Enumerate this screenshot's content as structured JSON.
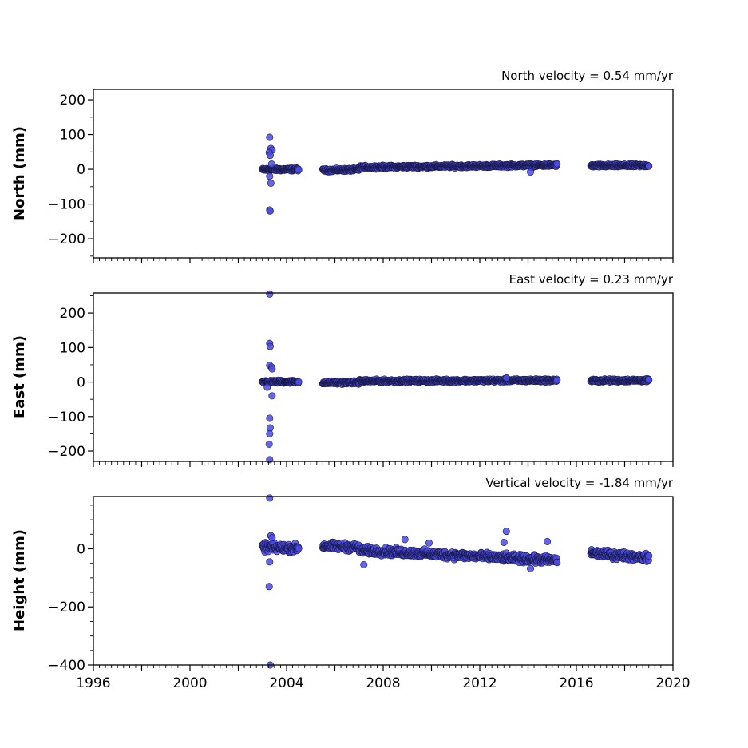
{
  "chart_data": [
    {
      "type": "scatter",
      "title": "North velocity = 0.54 mm/yr",
      "xlabel": "",
      "ylabel": "North (mm)",
      "xlim": [
        1996,
        2020
      ],
      "ylim": [
        -255,
        230
      ],
      "yticks": [
        -200,
        -100,
        0,
        100,
        200
      ],
      "ytick_labels": [
        "−200",
        "−100",
        "0",
        "100",
        "200"
      ],
      "velocity_mm_per_yr": 0.54,
      "marker_color": "#4a4ae6",
      "segments": [
        {
          "start": 2003.0,
          "end": 2004.5,
          "y0": -1,
          "y1": 0,
          "noise": 3
        },
        {
          "start": 2005.5,
          "end": 2007.0,
          "y0": -3,
          "y1": -1,
          "noise": 3
        },
        {
          "start": 2007.0,
          "end": 2015.2,
          "y0": 6,
          "y1": 12,
          "noise": 3
        },
        {
          "start": 2016.6,
          "end": 2019.0,
          "y0": 10,
          "y1": 11,
          "noise": 3
        }
      ],
      "outliers": [
        {
          "x": 2003.3,
          "y": 92
        },
        {
          "x": 2003.35,
          "y": 60
        },
        {
          "x": 2003.4,
          "y": 55
        },
        {
          "x": 2003.28,
          "y": 48
        },
        {
          "x": 2003.32,
          "y": 40
        },
        {
          "x": 2003.38,
          "y": 15
        },
        {
          "x": 2003.3,
          "y": -20
        },
        {
          "x": 2003.35,
          "y": -40
        },
        {
          "x": 2003.3,
          "y": -117
        },
        {
          "x": 2003.32,
          "y": -120
        },
        {
          "x": 2014.1,
          "y": -8
        }
      ]
    },
    {
      "type": "scatter",
      "title": "East velocity = 0.23 mm/yr",
      "xlabel": "",
      "ylabel": "East (mm)",
      "xlim": [
        1996,
        2020
      ],
      "ylim": [
        -230,
        258
      ],
      "yticks": [
        -200,
        -100,
        0,
        100,
        200
      ],
      "ytick_labels": [
        "−200",
        "−100",
        "0",
        "100",
        "200"
      ],
      "velocity_mm_per_yr": 0.23,
      "marker_color": "#4a4ae6",
      "segments": [
        {
          "start": 2003.0,
          "end": 2004.5,
          "y0": 1,
          "y1": 1,
          "noise": 3
        },
        {
          "start": 2005.5,
          "end": 2007.0,
          "y0": -2,
          "y1": -1,
          "noise": 3
        },
        {
          "start": 2007.0,
          "end": 2015.2,
          "y0": 3,
          "y1": 5,
          "noise": 3
        },
        {
          "start": 2016.6,
          "end": 2019.0,
          "y0": 4,
          "y1": 5,
          "noise": 3
        }
      ],
      "outliers": [
        {
          "x": 2003.3,
          "y": 255
        },
        {
          "x": 2003.3,
          "y": 112
        },
        {
          "x": 2003.32,
          "y": 103
        },
        {
          "x": 2003.3,
          "y": 48
        },
        {
          "x": 2003.38,
          "y": 43
        },
        {
          "x": 2003.4,
          "y": 38
        },
        {
          "x": 2003.2,
          "y": -15
        },
        {
          "x": 2003.4,
          "y": -40
        },
        {
          "x": 2003.3,
          "y": -105
        },
        {
          "x": 2003.32,
          "y": -133
        },
        {
          "x": 2003.3,
          "y": -150
        },
        {
          "x": 2003.28,
          "y": -180
        },
        {
          "x": 2003.3,
          "y": -225
        },
        {
          "x": 2013.1,
          "y": 12
        }
      ]
    },
    {
      "type": "scatter",
      "title": "Vertical velocity = -1.84 mm/yr",
      "xlabel": "",
      "ylabel": "Height (mm)",
      "xlim": [
        1996,
        2020
      ],
      "xticks": [
        1996,
        2000,
        2004,
        2008,
        2012,
        2016,
        2020
      ],
      "xtick_labels": [
        "1996",
        "2000",
        "2004",
        "2008",
        "2012",
        "2016",
        "2020"
      ],
      "ylim": [
        -400,
        180
      ],
      "yticks": [
        -400,
        -200,
        0
      ],
      "ytick_labels": [
        "−400",
        "−200",
        "0"
      ],
      "velocity_mm_per_yr": -1.84,
      "marker_color": "#4a4ae6",
      "segments": [
        {
          "start": 2003.0,
          "end": 2004.5,
          "y0": 5,
          "y1": 2,
          "noise": 10
        },
        {
          "start": 2005.5,
          "end": 2007.0,
          "y0": 10,
          "y1": 5,
          "noise": 9
        },
        {
          "start": 2007.0,
          "end": 2015.2,
          "y0": -5,
          "y1": -40,
          "noise": 9
        },
        {
          "start": 2016.6,
          "end": 2019.0,
          "y0": -15,
          "y1": -30,
          "noise": 9
        }
      ],
      "outliers": [
        {
          "x": 2003.3,
          "y": 175
        },
        {
          "x": 2003.35,
          "y": 45
        },
        {
          "x": 2003.4,
          "y": 38
        },
        {
          "x": 2003.3,
          "y": -45
        },
        {
          "x": 2003.28,
          "y": -130
        },
        {
          "x": 2003.32,
          "y": -400
        },
        {
          "x": 2007.2,
          "y": -55
        },
        {
          "x": 2008.9,
          "y": 32
        },
        {
          "x": 2009.9,
          "y": 20
        },
        {
          "x": 2013.0,
          "y": 22
        },
        {
          "x": 2013.1,
          "y": 60
        },
        {
          "x": 2014.1,
          "y": -68
        },
        {
          "x": 2014.8,
          "y": 25
        }
      ]
    }
  ]
}
